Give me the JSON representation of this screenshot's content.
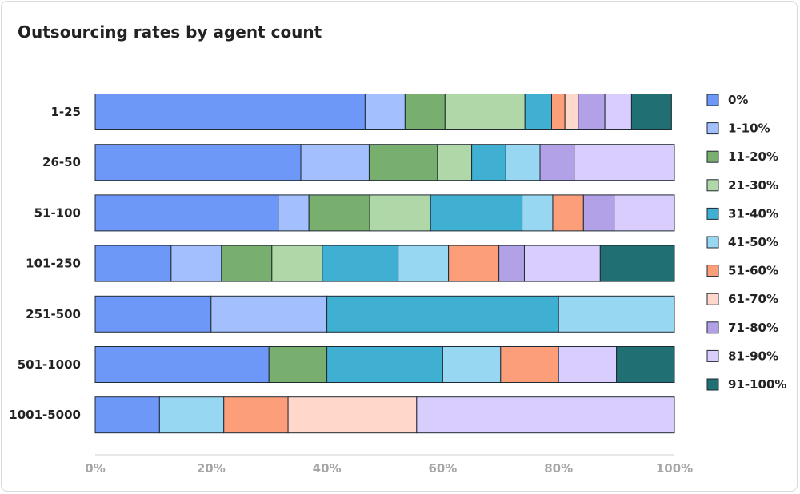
{
  "chart_data": {
    "type": "bar",
    "orientation": "horizontal",
    "stacked": true,
    "title": "Outsourcing rates by agent count",
    "categories": [
      "1-25",
      "26-50",
      "51-100",
      "101-250",
      "251-500",
      "501-1000",
      "1001-5000"
    ],
    "series": [
      {
        "name": "0%",
        "color": "#6e98f8",
        "values": [
          46.6,
          35.5,
          31.6,
          13.1,
          20,
          30,
          11.1
        ]
      },
      {
        "name": "1-10%",
        "color": "#a3bffd",
        "values": [
          6.9,
          11.8,
          5.3,
          8.7,
          20,
          0,
          0
        ]
      },
      {
        "name": "11-20%",
        "color": "#78ae6e",
        "values": [
          6.9,
          11.8,
          10.5,
          8.7,
          0,
          10,
          0
        ]
      },
      {
        "name": "21-30%",
        "color": "#b0d7a8",
        "values": [
          13.8,
          5.9,
          10.5,
          8.7,
          0,
          0,
          0
        ]
      },
      {
        "name": "31-40%",
        "color": "#3fb0d1",
        "values": [
          4.6,
          5.9,
          15.8,
          13.1,
          40,
          20,
          0
        ]
      },
      {
        "name": "41-50%",
        "color": "#98d7f1",
        "values": [
          0,
          5.9,
          5.3,
          8.7,
          20,
          10,
          11.1
        ]
      },
      {
        "name": "51-60%",
        "color": "#fd9e7a",
        "values": [
          2.3,
          0,
          5.3,
          8.7,
          0,
          10,
          11.1
        ]
      },
      {
        "name": "61-70%",
        "color": "#ffd7cb",
        "values": [
          2.3,
          0,
          0,
          0,
          0,
          0,
          22.2
        ]
      },
      {
        "name": "71-80%",
        "color": "#b3a1e8",
        "values": [
          4.6,
          5.9,
          5.3,
          4.4,
          0,
          0,
          0
        ]
      },
      {
        "name": "81-90%",
        "color": "#d8cdfd",
        "values": [
          4.6,
          17.6,
          10.5,
          13.1,
          0,
          10,
          44.5
        ]
      },
      {
        "name": "91-100%",
        "color": "#206f73",
        "values": [
          6.9,
          0,
          0,
          13.1,
          0,
          10,
          0
        ]
      }
    ],
    "xlim": [
      0,
      100
    ],
    "xticks": [
      "0%",
      "20%",
      "40%",
      "60%",
      "80%",
      "100%"
    ],
    "xlabel": "",
    "ylabel": "",
    "grid": false,
    "legend": "right"
  }
}
